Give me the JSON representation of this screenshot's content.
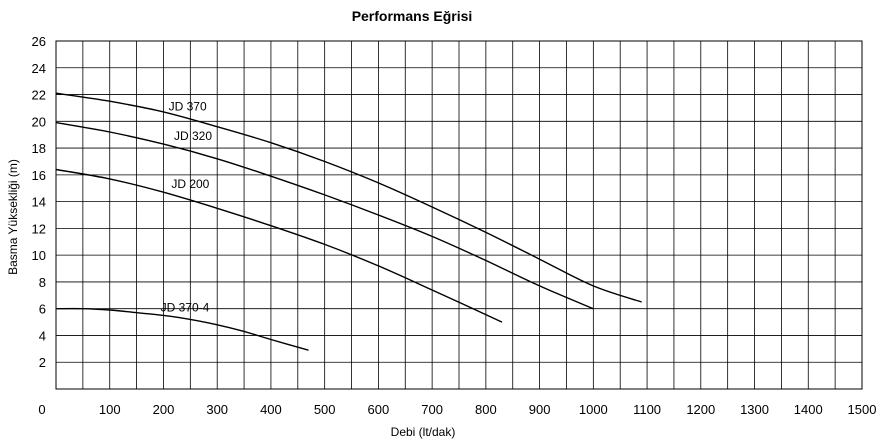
{
  "chart_data": {
    "type": "line",
    "title": "Performans Eğrisi",
    "xlabel": "Debi (lt/dak)",
    "ylabel": "Basma Yüksekliği (m)",
    "xlim": [
      0,
      1500
    ],
    "ylim": [
      0,
      26
    ],
    "xticks": [
      0,
      100,
      200,
      300,
      400,
      500,
      600,
      700,
      800,
      900,
      1000,
      1100,
      1200,
      1300,
      1400,
      1500
    ],
    "yticks": [
      2,
      4,
      6,
      8,
      10,
      12,
      14,
      16,
      18,
      20,
      22,
      24,
      26
    ],
    "grid": true,
    "grid_x_step": 50,
    "grid_y_step": 2,
    "legend": "inline labels",
    "line_color": "#000000",
    "series": [
      {
        "name": "JD 370",
        "label_at": [
          245,
          20.8
        ],
        "x": [
          0,
          100,
          200,
          300,
          400,
          500,
          600,
          700,
          800,
          900,
          1000,
          1090
        ],
        "y": [
          22.1,
          21.5,
          20.7,
          19.6,
          18.4,
          17.0,
          15.4,
          13.6,
          11.7,
          9.7,
          7.7,
          6.5
        ]
      },
      {
        "name": "JD 320",
        "label_at": [
          255,
          18.6
        ],
        "x": [
          0,
          100,
          200,
          300,
          400,
          500,
          600,
          700,
          800,
          900,
          1000
        ],
        "y": [
          19.9,
          19.2,
          18.3,
          17.2,
          15.9,
          14.5,
          13.0,
          11.4,
          9.6,
          7.7,
          6.0
        ]
      },
      {
        "name": "JD 200",
        "label_at": [
          250,
          15.0
        ],
        "x": [
          0,
          100,
          200,
          300,
          400,
          500,
          600,
          700,
          830
        ],
        "y": [
          16.4,
          15.7,
          14.7,
          13.5,
          12.2,
          10.8,
          9.2,
          7.4,
          5.0
        ]
      },
      {
        "name": "JD 370-4",
        "label_at": [
          240,
          5.8
        ],
        "x": [
          0,
          50,
          100,
          150,
          200,
          250,
          300,
          350,
          400,
          470
        ],
        "y": [
          6.0,
          6.0,
          5.9,
          5.7,
          5.5,
          5.2,
          4.8,
          4.3,
          3.7,
          2.9
        ]
      }
    ]
  }
}
